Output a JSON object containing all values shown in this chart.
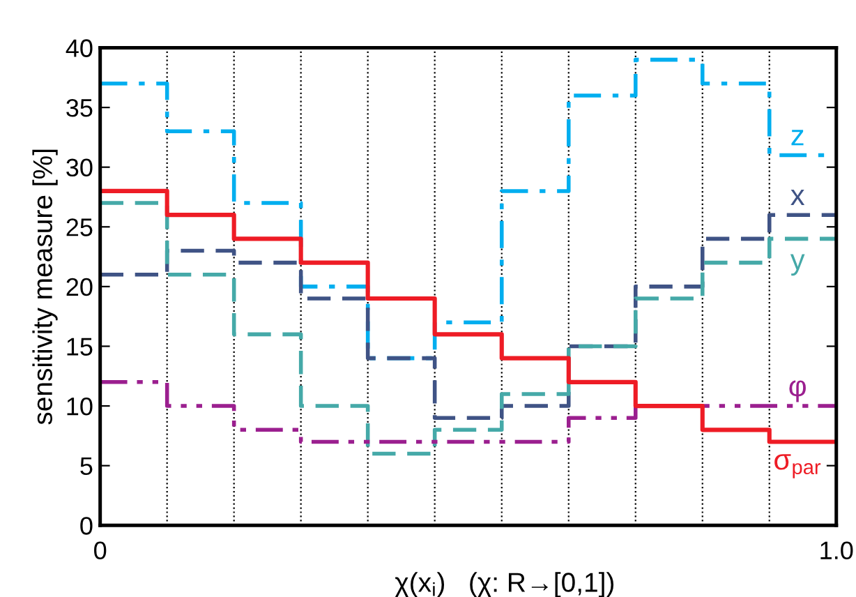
{
  "chart_data": {
    "type": "step",
    "xlabel": "χ(x$_{i}$)   (χ: R→[0,1])",
    "ylabel": "sensitivity measure [%]",
    "x": [
      0,
      0.0909,
      0.1818,
      0.2727,
      0.3636,
      0.4545,
      0.5455,
      0.6364,
      0.7273,
      0.8182,
      0.9091,
      1
    ],
    "xlim": [
      0,
      1
    ],
    "ylim": [
      0,
      40
    ],
    "xticks": [
      0,
      {
        "value": 0.0909,
        "label": null
      },
      {
        "value": 0.1818,
        "label": null
      },
      {
        "value": 0.2727,
        "label": null
      },
      {
        "value": 0.3636,
        "label": null
      },
      {
        "value": 0.4545,
        "label": null
      },
      {
        "value": 0.5455,
        "label": null
      },
      {
        "value": 0.6364,
        "label": null
      },
      {
        "value": 0.7273,
        "label": null
      },
      {
        "value": 0.8182,
        "label": null
      },
      {
        "value": 0.9091,
        "label": null
      },
      {
        "value": 1,
        "label": "1.0"
      }
    ],
    "yticks": [
      0,
      5,
      10,
      15,
      20,
      25,
      30,
      35,
      40
    ],
    "grid": "x",
    "legend": false,
    "series": [
      {
        "name": "z",
        "color": "#00aeef",
        "line_style": "dashdot",
        "values": [
          37,
          33,
          27,
          20,
          14,
          17,
          28,
          36,
          39,
          37,
          31,
          31
        ]
      },
      {
        "name": "x",
        "color": "#3f5385",
        "line_style": "dashed",
        "values": [
          21,
          23,
          22,
          19,
          14,
          9,
          10,
          15,
          20,
          24,
          26,
          26
        ]
      },
      {
        "name": "y",
        "color": "#45a9a8",
        "line_style": "dashed",
        "values": [
          27,
          21,
          16,
          10,
          6,
          8,
          11,
          15,
          19,
          22,
          24,
          24
        ]
      },
      {
        "name": "φ",
        "color": "#9b1f8f",
        "line_style": "dashdotdot",
        "values": [
          12,
          10,
          8,
          7,
          7,
          7,
          7,
          9,
          10,
          10,
          10,
          10
        ]
      },
      {
        "name": "σ$_{par}$",
        "color": "#ee1c25",
        "line_style": "solid",
        "values": [
          28,
          26,
          24,
          22,
          19,
          16,
          14,
          12,
          10,
          8,
          7,
          7
        ]
      }
    ]
  }
}
